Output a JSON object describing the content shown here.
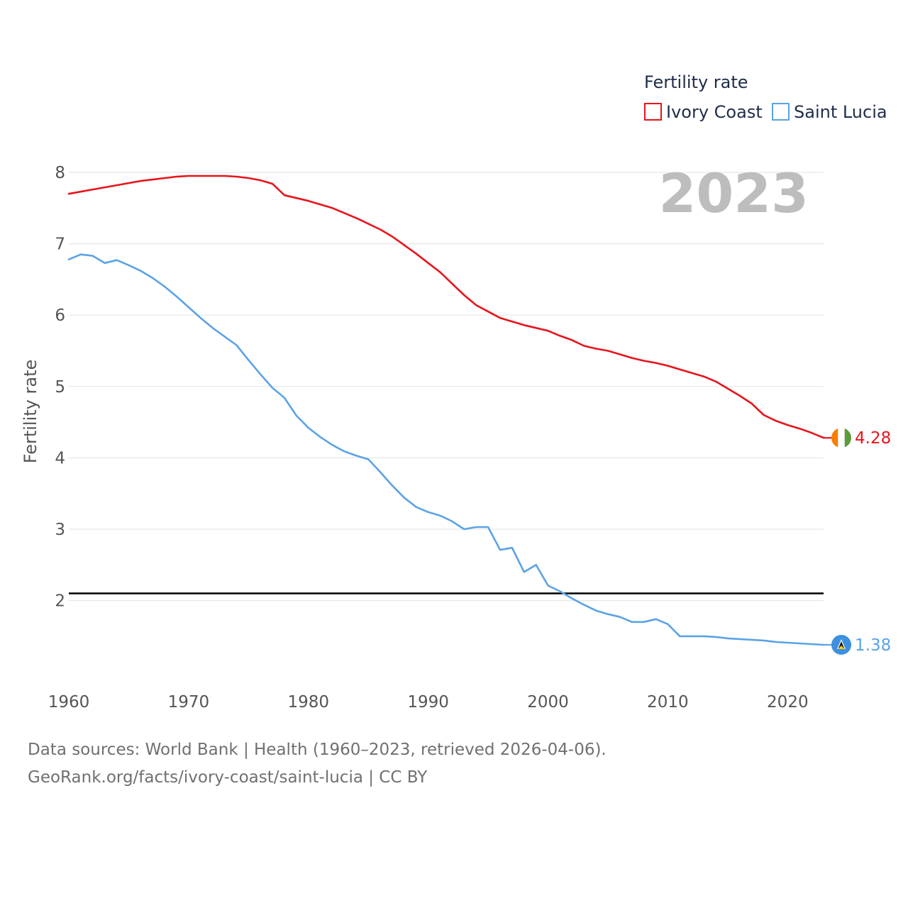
{
  "legend": {
    "title": "Fertility rate",
    "items": [
      {
        "label": "Ivory Coast",
        "color": "#e8141b"
      },
      {
        "label": "Saint Lucia",
        "color": "#5ba3e6"
      }
    ]
  },
  "year_label": "2023",
  "footer": {
    "line1": "Data sources: World Bank | Health (1960–2023, retrieved 2026-04-06).",
    "line2": "GeoRank.org/facts/ivory-coast/saint-lucia | CC BY"
  },
  "chart_data": {
    "type": "line",
    "title": "Fertility rate",
    "xlabel": "",
    "ylabel": "Fertility rate",
    "xlim": [
      1960,
      2023
    ],
    "ylim": [
      1,
      8
    ],
    "x_ticks": [
      1960,
      1970,
      1980,
      1990,
      2000,
      2010,
      2020
    ],
    "y_ticks": [
      2,
      3,
      4,
      5,
      6,
      7,
      8
    ],
    "grid": true,
    "reference_line": {
      "y": 2.1,
      "color": "#000000"
    },
    "x": [
      1960,
      1961,
      1962,
      1963,
      1964,
      1965,
      1966,
      1967,
      1968,
      1969,
      1970,
      1971,
      1972,
      1973,
      1974,
      1975,
      1976,
      1977,
      1978,
      1979,
      1980,
      1981,
      1982,
      1983,
      1984,
      1985,
      1986,
      1987,
      1988,
      1989,
      1990,
      1991,
      1992,
      1993,
      1994,
      1995,
      1996,
      1997,
      1998,
      1999,
      2000,
      2001,
      2002,
      2003,
      2004,
      2005,
      2006,
      2007,
      2008,
      2009,
      2010,
      2011,
      2012,
      2013,
      2014,
      2015,
      2016,
      2017,
      2018,
      2019,
      2020,
      2021,
      2022,
      2023
    ],
    "series": [
      {
        "name": "Ivory Coast",
        "color": "#e8141b",
        "end_label": "4.28",
        "values": [
          7.7,
          7.73,
          7.76,
          7.79,
          7.82,
          7.85,
          7.88,
          7.9,
          7.92,
          7.94,
          7.95,
          7.95,
          7.95,
          7.95,
          7.94,
          7.92,
          7.89,
          7.84,
          7.68,
          7.64,
          7.6,
          7.55,
          7.5,
          7.43,
          7.36,
          7.28,
          7.2,
          7.1,
          6.98,
          6.86,
          6.73,
          6.6,
          6.44,
          6.28,
          6.14,
          6.05,
          5.96,
          5.91,
          5.86,
          5.82,
          5.78,
          5.71,
          5.65,
          5.57,
          5.53,
          5.5,
          5.45,
          5.4,
          5.36,
          5.33,
          5.29,
          5.24,
          5.19,
          5.14,
          5.07,
          4.97,
          4.87,
          4.76,
          4.6,
          4.52,
          4.46,
          4.41,
          4.35,
          4.28
        ]
      },
      {
        "name": "Saint Lucia",
        "color": "#5ba3e6",
        "end_label": "1.38",
        "values": [
          6.78,
          6.85,
          6.83,
          6.73,
          6.77,
          6.7,
          6.62,
          6.52,
          6.4,
          6.26,
          6.11,
          5.96,
          5.82,
          5.7,
          5.58,
          5.37,
          5.17,
          4.98,
          4.84,
          4.59,
          4.42,
          4.29,
          4.18,
          4.09,
          4.03,
          3.98,
          3.8,
          3.61,
          3.44,
          3.31,
          3.24,
          3.19,
          3.11,
          3.0,
          3.03,
          3.03,
          2.71,
          2.74,
          2.4,
          2.5,
          2.21,
          2.13,
          2.03,
          1.94,
          1.86,
          1.81,
          1.77,
          1.7,
          1.7,
          1.74,
          1.67,
          1.5,
          1.5,
          1.5,
          1.49,
          1.47,
          1.46,
          1.45,
          1.44,
          1.42,
          1.41,
          1.4,
          1.39,
          1.38
        ]
      }
    ]
  }
}
